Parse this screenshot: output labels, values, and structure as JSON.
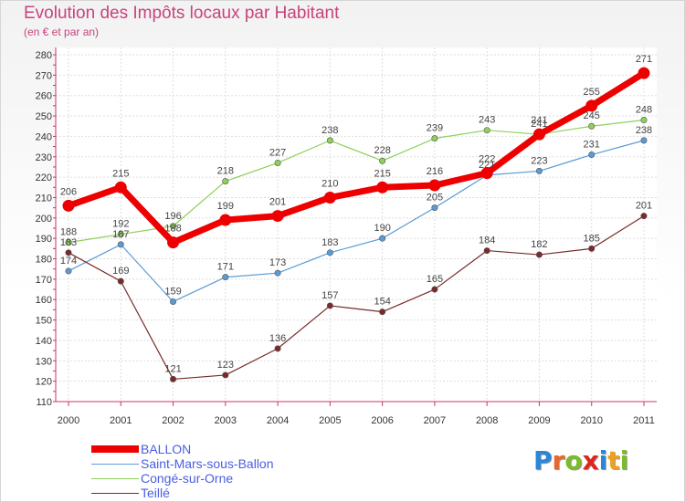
{
  "title": "Evolution des Impôts locaux par Habitant",
  "subtitle": "(en € et par an)",
  "logo": {
    "letters": [
      {
        "ch": "P",
        "color": "#2a86d6"
      },
      {
        "ch": "r",
        "color": "#e8672a"
      },
      {
        "ch": "o",
        "color": "#7cbb2a"
      },
      {
        "ch": "x",
        "color": "#e2231a"
      },
      {
        "ch": "i",
        "color": "#2a86d6"
      },
      {
        "ch": "t",
        "color": "#f0a020"
      },
      {
        "ch": "i",
        "color": "#7cbb2a"
      }
    ]
  },
  "chart_data": {
    "type": "line",
    "title": "Evolution des Impôts locaux par Habitant",
    "subtitle": "(en € et par an)",
    "xlabel": "",
    "ylabel": "",
    "x": [
      "2000",
      "2001",
      "2002",
      "2003",
      "2004",
      "2005",
      "2006",
      "2007",
      "2008",
      "2009",
      "2010",
      "2011"
    ],
    "ylim": [
      110,
      280
    ],
    "yticks": [
      110,
      120,
      130,
      140,
      150,
      160,
      170,
      180,
      190,
      200,
      210,
      220,
      230,
      240,
      250,
      260,
      270,
      280
    ],
    "grid": true,
    "legend": "bottom-left",
    "series": [
      {
        "name": "BALLON",
        "color": "#ee0000",
        "bold": true,
        "values": [
          206,
          215,
          188,
          199,
          201,
          210,
          215,
          216,
          222,
          241,
          255,
          271
        ]
      },
      {
        "name": "Saint-Mars-sous-Ballon",
        "color": "#5b9bd5",
        "bold": false,
        "values": [
          174,
          187,
          159,
          171,
          173,
          183,
          190,
          205,
          221,
          223,
          231,
          238
        ]
      },
      {
        "name": "Congé-sur-Orne",
        "color": "#8fd05a",
        "bold": false,
        "values": [
          188,
          192,
          196,
          218,
          227,
          238,
          228,
          239,
          243,
          241,
          245,
          248
        ]
      },
      {
        "name": "Teillé",
        "color": "#7a2a2a",
        "bold": false,
        "values": [
          183,
          169,
          121,
          123,
          136,
          157,
          154,
          165,
          184,
          182,
          185,
          201
        ]
      }
    ]
  }
}
